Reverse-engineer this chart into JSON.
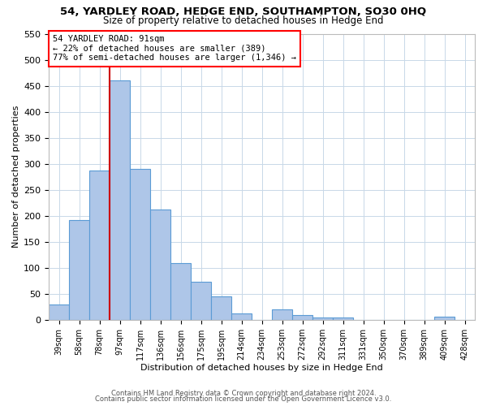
{
  "title": "54, YARDLEY ROAD, HEDGE END, SOUTHAMPTON, SO30 0HQ",
  "subtitle": "Size of property relative to detached houses in Hedge End",
  "xlabel": "Distribution of detached houses by size in Hedge End",
  "ylabel": "Number of detached properties",
  "bar_labels": [
    "39sqm",
    "58sqm",
    "78sqm",
    "97sqm",
    "117sqm",
    "136sqm",
    "156sqm",
    "175sqm",
    "195sqm",
    "214sqm",
    "234sqm",
    "253sqm",
    "272sqm",
    "292sqm",
    "311sqm",
    "331sqm",
    "350sqm",
    "370sqm",
    "389sqm",
    "409sqm",
    "428sqm"
  ],
  "bar_values": [
    30,
    192,
    287,
    460,
    290,
    213,
    110,
    74,
    46,
    12,
    0,
    21,
    9,
    5,
    5,
    0,
    0,
    0,
    0,
    6,
    0
  ],
  "bar_color": "#aec6e8",
  "bar_edge_color": "#5b9bd5",
  "background_color": "#ffffff",
  "grid_color": "#c8d8e8",
  "vline_color": "#cc0000",
  "ylim": [
    0,
    550
  ],
  "yticks": [
    0,
    50,
    100,
    150,
    200,
    250,
    300,
    350,
    400,
    450,
    500,
    550
  ],
  "annotation_title": "54 YARDLEY ROAD: 91sqm",
  "annotation_line1": "← 22% of detached houses are smaller (389)",
  "annotation_line2": "77% of semi-detached houses are larger (1,346) →",
  "footer1": "Contains HM Land Registry data © Crown copyright and database right 2024.",
  "footer2": "Contains public sector information licensed under the Open Government Licence v3.0."
}
